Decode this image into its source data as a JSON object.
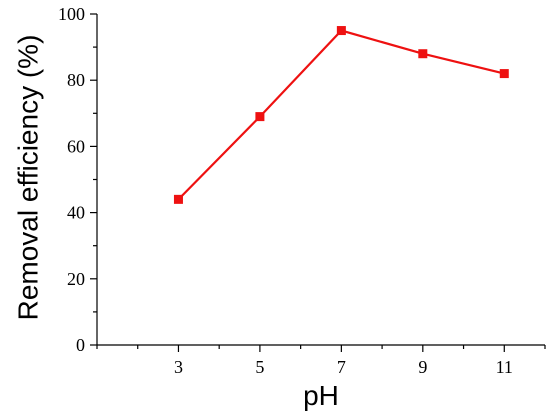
{
  "chart_data": {
    "type": "line",
    "title": "",
    "xlabel": "pH",
    "ylabel": "Removal efficiency (%)",
    "x": [
      3,
      5,
      7,
      9,
      11
    ],
    "xticks": [
      "3",
      "5",
      "7",
      "9",
      "11"
    ],
    "xlim": [
      1,
      12
    ],
    "ylim": [
      0,
      100
    ],
    "yticks": [
      "0",
      "20",
      "40",
      "60",
      "80",
      "100"
    ],
    "grid": false,
    "series": [
      {
        "color": "#ee1111",
        "marker": "square",
        "values": [
          44,
          69,
          95,
          88,
          82
        ]
      }
    ]
  }
}
